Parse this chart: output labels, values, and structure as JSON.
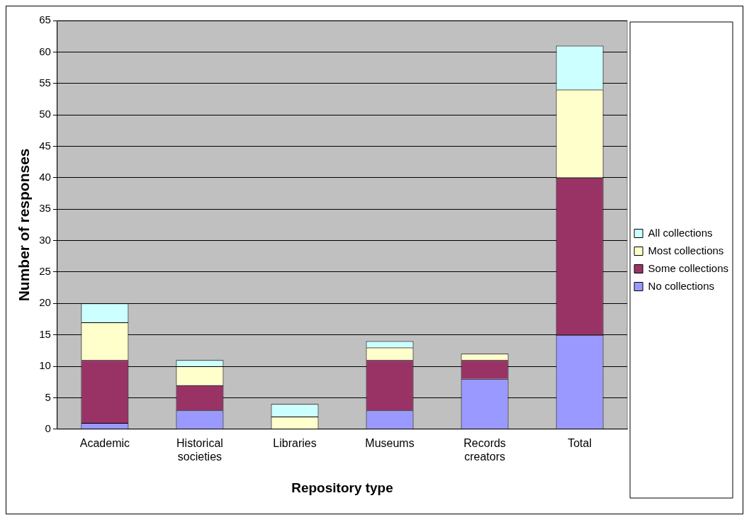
{
  "chart_data": {
    "type": "bar",
    "stacked": true,
    "xlabel": "Repository type",
    "ylabel": "Number of responses",
    "categories": [
      "Academic",
      "Historical societies",
      "Libraries",
      "Museums",
      "Records creators",
      "Total"
    ],
    "series": [
      {
        "name": "No collections",
        "color": "#9999ff",
        "values": [
          1,
          3,
          0,
          3,
          8,
          15
        ]
      },
      {
        "name": "Some collections",
        "color": "#993366",
        "values": [
          10,
          4,
          0,
          8,
          3,
          25
        ]
      },
      {
        "name": "Most collections",
        "color": "#ffffcc",
        "values": [
          6,
          3,
          2,
          2,
          1,
          14
        ]
      },
      {
        "name": "All collections",
        "color": "#ccffff",
        "values": [
          3,
          1,
          2,
          1,
          0,
          7
        ]
      }
    ],
    "ylim": [
      0,
      65
    ],
    "yticks": [
      0,
      5,
      10,
      15,
      20,
      25,
      30,
      35,
      40,
      45,
      50,
      55,
      60,
      65
    ],
    "grid": "y",
    "legend": "right"
  }
}
